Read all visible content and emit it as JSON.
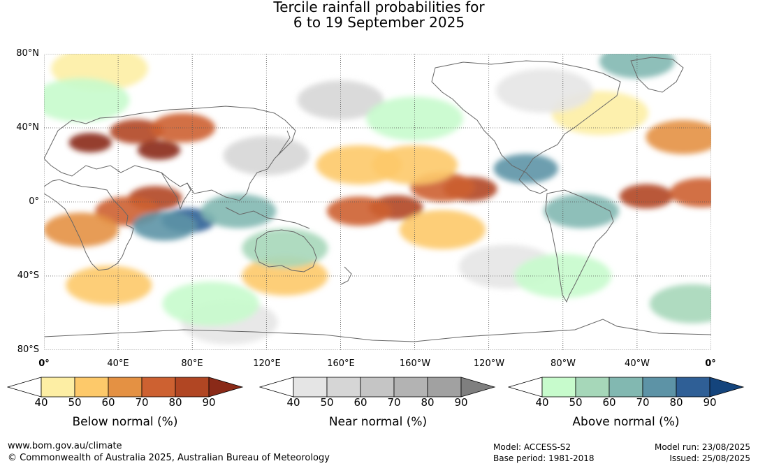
{
  "title": {
    "line1": "Tercile rainfall probabilities for",
    "line2": "6 to 19 September 2025"
  },
  "map": {
    "lat_labels": [
      "80°N",
      "40°N",
      "0°",
      "40°S",
      "80°S"
    ],
    "lon_labels": [
      "0°",
      "40°E",
      "80°E",
      "120°E",
      "160°E",
      "160°W",
      "120°W",
      "80°W",
      "40°W",
      "0°"
    ],
    "patches": [
      {
        "category": "below",
        "level": 90,
        "lon": 25,
        "lat": 32
      },
      {
        "category": "below",
        "level": 80,
        "lon": 50,
        "lat": 38
      },
      {
        "category": "below",
        "level": 70,
        "lon": 75,
        "lat": 40
      },
      {
        "category": "below",
        "level": 90,
        "lon": 62,
        "lat": 28
      },
      {
        "category": "below",
        "level": 80,
        "lon": 60,
        "lat": 2
      },
      {
        "category": "below",
        "level": 70,
        "lon": 45,
        "lat": -5
      },
      {
        "category": "below",
        "level": 60,
        "lon": 20,
        "lat": -15
      },
      {
        "category": "below",
        "level": 80,
        "lon": 190,
        "lat": -3
      },
      {
        "category": "below",
        "level": 70,
        "lon": 170,
        "lat": -5
      },
      {
        "category": "below",
        "level": 80,
        "lon": 230,
        "lat": 7
      },
      {
        "category": "below",
        "level": 70,
        "lon": 215,
        "lat": 8
      },
      {
        "category": "below",
        "level": 80,
        "lon": 325,
        "lat": 3
      },
      {
        "category": "below",
        "level": 70,
        "lon": 355,
        "lat": 5
      },
      {
        "category": "below",
        "level": 60,
        "lon": 345,
        "lat": 35
      },
      {
        "category": "below",
        "level": 50,
        "lon": 170,
        "lat": 20
      },
      {
        "category": "below",
        "level": 50,
        "lon": 200,
        "lat": 20
      },
      {
        "category": "below",
        "level": 50,
        "lon": 215,
        "lat": -15
      },
      {
        "category": "below",
        "level": 50,
        "lon": 35,
        "lat": -45
      },
      {
        "category": "below",
        "level": 50,
        "lon": 130,
        "lat": -40
      },
      {
        "category": "below",
        "level": 40,
        "lon": 30,
        "lat": 72
      },
      {
        "category": "below",
        "level": 40,
        "lon": 300,
        "lat": 48
      },
      {
        "category": "near",
        "level": 50,
        "lon": 120,
        "lat": 25
      },
      {
        "category": "near",
        "level": 50,
        "lon": 160,
        "lat": 55
      },
      {
        "category": "near",
        "level": 40,
        "lon": 250,
        "lat": -35
      },
      {
        "category": "near",
        "level": 40,
        "lon": 270,
        "lat": 60
      },
      {
        "category": "near",
        "level": 40,
        "lon": 100,
        "lat": -65
      },
      {
        "category": "above",
        "level": 80,
        "lon": 78,
        "lat": -10
      },
      {
        "category": "above",
        "level": 70,
        "lon": 65,
        "lat": -13
      },
      {
        "category": "above",
        "level": 60,
        "lon": 105,
        "lat": -5
      },
      {
        "category": "above",
        "level": 70,
        "lon": 260,
        "lat": 18
      },
      {
        "category": "above",
        "level": 60,
        "lon": 290,
        "lat": -5
      },
      {
        "category": "above",
        "level": 60,
        "lon": 320,
        "lat": 76
      },
      {
        "category": "above",
        "level": 50,
        "lon": 130,
        "lat": -25
      },
      {
        "category": "above",
        "level": 50,
        "lon": 350,
        "lat": -55
      },
      {
        "category": "above",
        "level": 40,
        "lon": 200,
        "lat": 45
      },
      {
        "category": "above",
        "level": 40,
        "lon": 20,
        "lat": 55
      },
      {
        "category": "above",
        "level": 40,
        "lon": 280,
        "lat": -40
      },
      {
        "category": "above",
        "level": 40,
        "lon": 90,
        "lat": -55
      }
    ]
  },
  "legends": [
    {
      "title": "Below normal (%)",
      "labels": [
        "40",
        "50",
        "60",
        "70",
        "80",
        "90"
      ],
      "colors": [
        "#fdeea4",
        "#fdc96a",
        "#e49143",
        "#cd6131",
        "#b14623",
        "#8a2a18"
      ]
    },
    {
      "title": "Near normal (%)",
      "labels": [
        "40",
        "50",
        "60",
        "70",
        "80",
        "90"
      ],
      "colors": [
        "#e5e5e5",
        "#d6d6d6",
        "#c5c5c5",
        "#b3b3b3",
        "#a1a1a1",
        "#7f7f7f"
      ]
    },
    {
      "title": "Above normal (%)",
      "labels": [
        "40",
        "50",
        "60",
        "70",
        "80",
        "90"
      ],
      "colors": [
        "#c7fbcc",
        "#a6d7b9",
        "#82b8b1",
        "#5d93a6",
        "#2f5f96",
        "#14447c"
      ]
    }
  ],
  "footer": {
    "website": "www.bom.gov.au/climate",
    "copyright": "© Commonwealth of Australia 2025, Australian Bureau of Meteorology",
    "model": "Model: ACCESS-S2",
    "base_period": "Base period: 1981-2018",
    "model_run": "Model run: 23/08/2025",
    "issued": "Issued: 25/08/2025"
  }
}
